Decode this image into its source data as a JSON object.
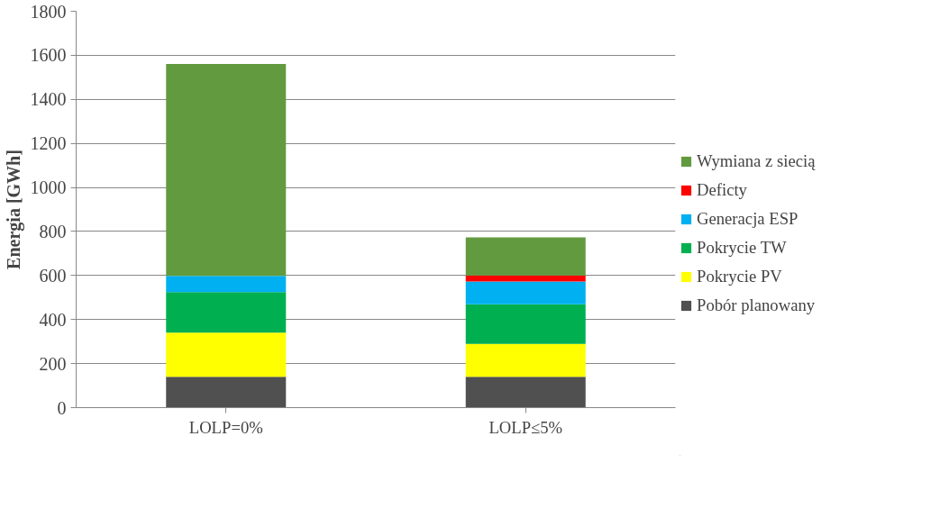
{
  "chart_data": {
    "type": "bar",
    "stacked": true,
    "ylabel": "Energia [GWh]",
    "categories": [
      "LOLP=0%",
      "LOLP≤5%"
    ],
    "series": [
      {
        "name": "Pobór planowany",
        "color": "#505050",
        "values": [
          140,
          140
        ]
      },
      {
        "name": "Pokrycie PV",
        "color": "#ffff00",
        "values": [
          201,
          149
        ]
      },
      {
        "name": "Pokrycie TW",
        "color": "#00b050",
        "values": [
          184,
          180
        ]
      },
      {
        "name": "Generacja ESP",
        "color": "#00b0f0",
        "values": [
          73,
          104
        ]
      },
      {
        "name": "Deficty",
        "color": "#ff0000",
        "values": [
          null,
          27
        ]
      },
      {
        "name": "Wymiana z siecią",
        "color": "#629b3f",
        "values": [
          963,
          173
        ]
      }
    ],
    "ylim": [
      0,
      1800
    ],
    "yticks": [
      0,
      200,
      400,
      600,
      800,
      1000,
      1200,
      1400,
      1600,
      1800
    ],
    "grid": "y",
    "legend": "right"
  }
}
